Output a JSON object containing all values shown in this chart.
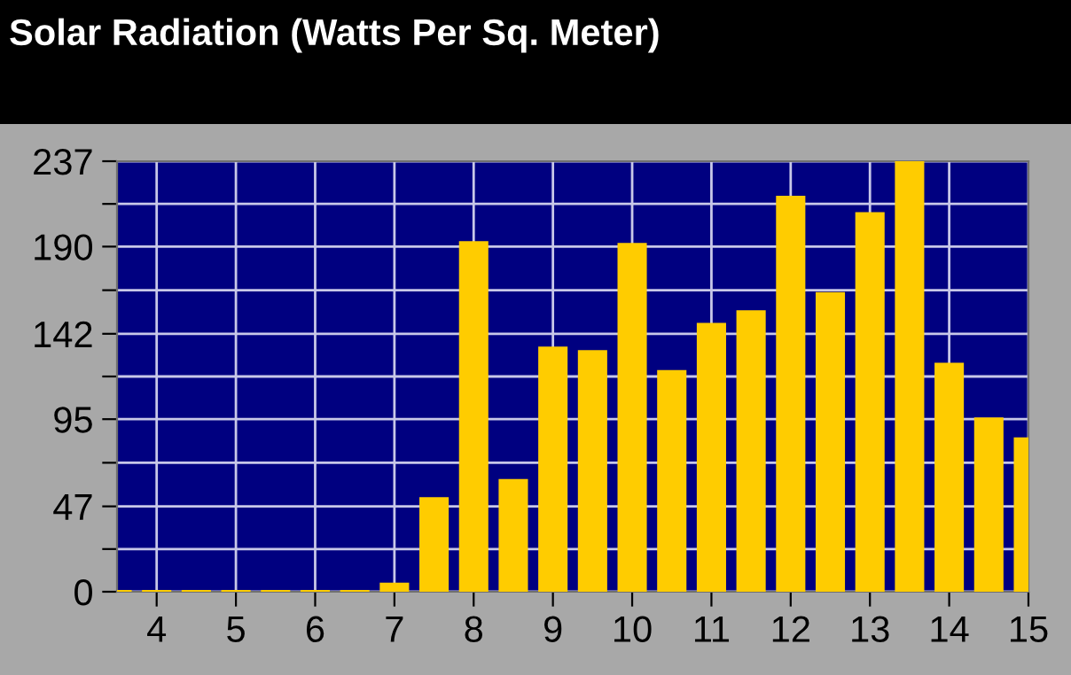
{
  "chart_data": {
    "type": "bar",
    "title": "Solar Radiation (Watts Per Sq. Meter)",
    "x": [
      3.5,
      4,
      4.5,
      5,
      5.5,
      6,
      6.5,
      7,
      7.5,
      8,
      8.5,
      9,
      9.5,
      10,
      10.5,
      11,
      11.5,
      12,
      12.5,
      13,
      13.5,
      14,
      14.5,
      15
    ],
    "values": [
      1,
      1,
      1,
      1,
      1,
      1,
      1,
      5,
      52,
      193,
      62,
      135,
      133,
      192,
      122,
      148,
      155,
      218,
      165,
      209,
      237,
      126,
      96,
      85
    ],
    "color": "#ffcc00",
    "xlim": [
      3.5,
      15
    ],
    "xticks": [
      4,
      5,
      6,
      7,
      8,
      9,
      10,
      11,
      12,
      13,
      14,
      15
    ],
    "ylim": [
      0,
      237
    ],
    "yticks": [
      0,
      {
        "value": 23.5,
        "label": null
      },
      47,
      {
        "value": 71,
        "label": null
      },
      95,
      {
        "value": 118.5,
        "label": null
      },
      142,
      {
        "value": 166,
        "label": null
      },
      190,
      {
        "value": 213.5,
        "label": null
      },
      237
    ],
    "grid": true
  }
}
